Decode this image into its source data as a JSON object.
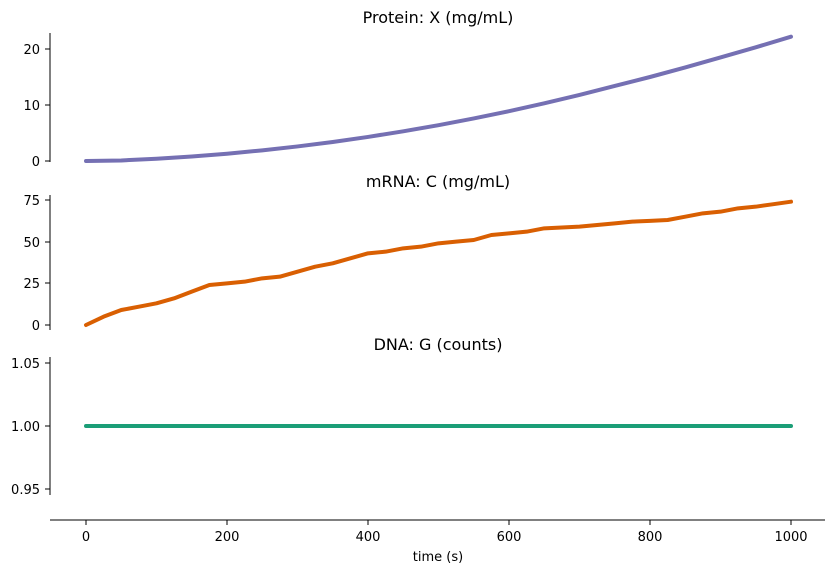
{
  "chart_data": [
    {
      "type": "line",
      "title": "Protein: X (mg/mL)",
      "xlabel": "",
      "ylabel": "",
      "xlim": [
        -50,
        1050
      ],
      "ylim": [
        -1.0,
        23.0
      ],
      "yticks": [
        0,
        10,
        20
      ],
      "ytick_labels": [
        "0",
        "10",
        "20"
      ],
      "grid": false,
      "series": [
        {
          "color": "#7570b3",
          "x": [
            0,
            50,
            100,
            150,
            200,
            250,
            300,
            350,
            400,
            450,
            500,
            550,
            600,
            650,
            700,
            750,
            800,
            850,
            900,
            950,
            1000
          ],
          "y": [
            0,
            0.1,
            0.4,
            0.8,
            1.3,
            1.9,
            2.6,
            3.4,
            4.3,
            5.3,
            6.4,
            7.6,
            8.9,
            10.3,
            11.8,
            13.4,
            15.0,
            16.7,
            18.5,
            20.3,
            22.2
          ]
        }
      ]
    },
    {
      "type": "line",
      "title": "mRNA: C (mg/mL)",
      "xlabel": "",
      "ylabel": "",
      "xlim": [
        -50,
        1050
      ],
      "ylim": [
        -2,
        78
      ],
      "yticks": [
        0,
        25,
        50,
        75
      ],
      "ytick_labels": [
        "0",
        "25",
        "50",
        "75"
      ],
      "grid": false,
      "series": [
        {
          "color": "#d95f02",
          "x": [
            0,
            25,
            50,
            75,
            100,
            125,
            150,
            175,
            200,
            225,
            250,
            275,
            300,
            325,
            350,
            375,
            400,
            425,
            450,
            475,
            500,
            525,
            550,
            575,
            600,
            625,
            650,
            675,
            700,
            725,
            750,
            775,
            800,
            825,
            850,
            875,
            900,
            925,
            950,
            975,
            1000
          ],
          "y": [
            0,
            5,
            9,
            11,
            13,
            16,
            20,
            24,
            25,
            26,
            28,
            29,
            32,
            35,
            37,
            40,
            43,
            44,
            46,
            47,
            49,
            50,
            51,
            54,
            55,
            56,
            58,
            58.5,
            59,
            60,
            61,
            62,
            62.5,
            63,
            65,
            67,
            68,
            70,
            71,
            72.5,
            74
          ]
        }
      ]
    },
    {
      "type": "line",
      "title": "DNA: G (counts)",
      "xlabel": "time (s)",
      "ylabel": "",
      "xlim": [
        -50,
        1050
      ],
      "ylim": [
        0.94,
        1.06
      ],
      "xticks": [
        0,
        200,
        400,
        600,
        800,
        1000
      ],
      "xtick_labels": [
        "0",
        "200",
        "400",
        "600",
        "800",
        "1000"
      ],
      "yticks": [
        0.95,
        1.0,
        1.05
      ],
      "ytick_labels": [
        "0.95",
        "1.00",
        "1.05"
      ],
      "grid": false,
      "series": [
        {
          "color": "#1b9e77",
          "x": [
            0,
            1000
          ],
          "y": [
            1.0,
            1.0
          ]
        }
      ]
    }
  ]
}
